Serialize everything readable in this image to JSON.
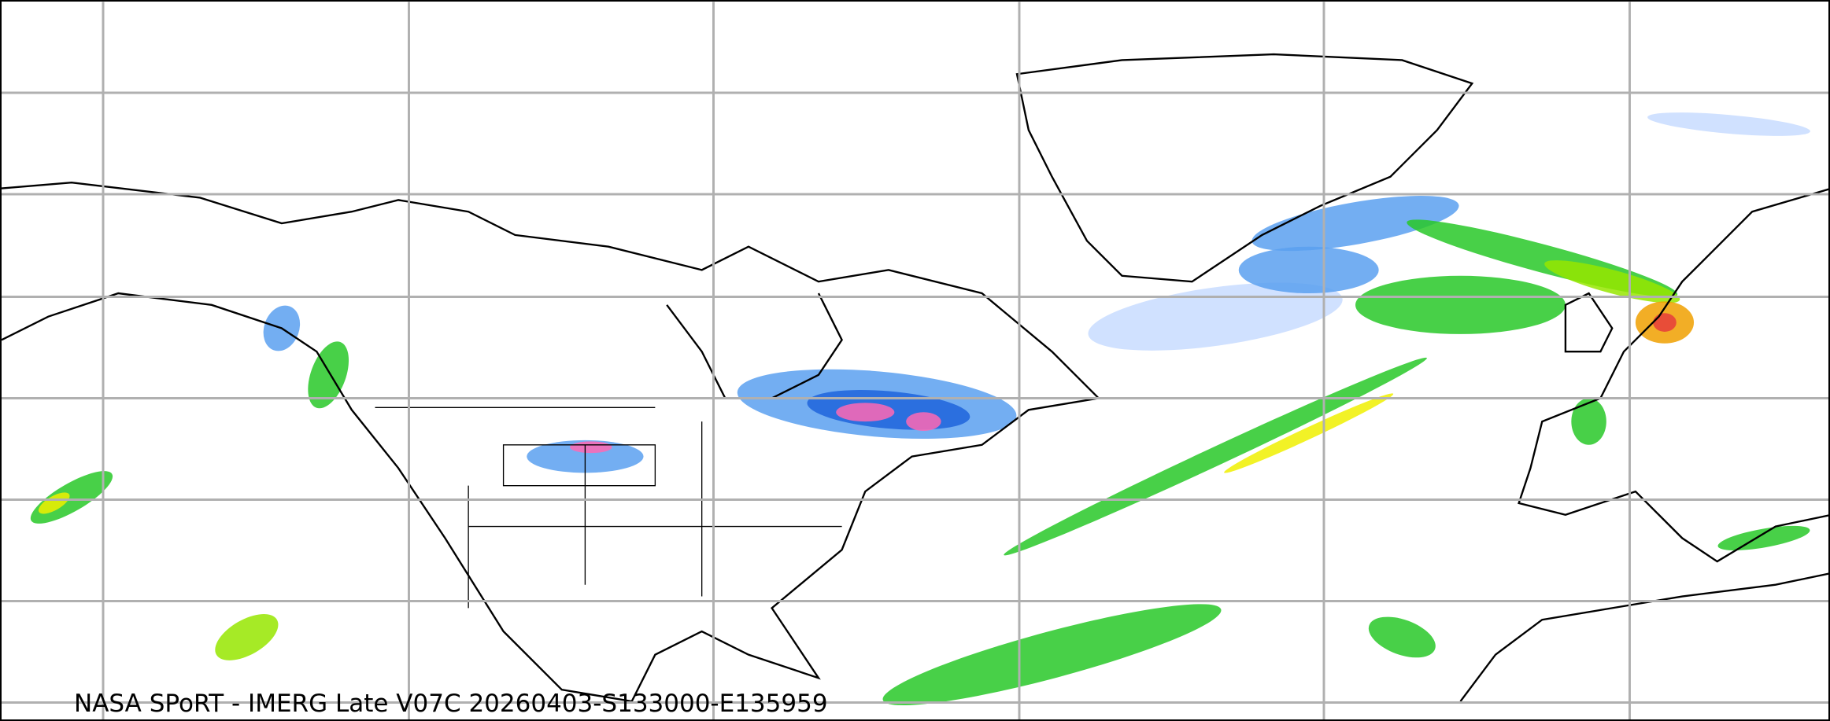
{
  "caption": "NASA SPoRT - IMERG Late V07C 20260403-S133000-E135959",
  "map": {
    "projection": "equirectangular",
    "region": "North America, North Atlantic, Europe",
    "graticule": true,
    "graticule_color": "#b0b0b0",
    "coastline_color": "#000000",
    "precip_colors": [
      "#c8dcff",
      "#5aa0f0",
      "#1e64dc",
      "#28c828",
      "#96e600",
      "#f0f000",
      "#f0a000",
      "#e63c3c",
      "#ff69b4"
    ]
  }
}
